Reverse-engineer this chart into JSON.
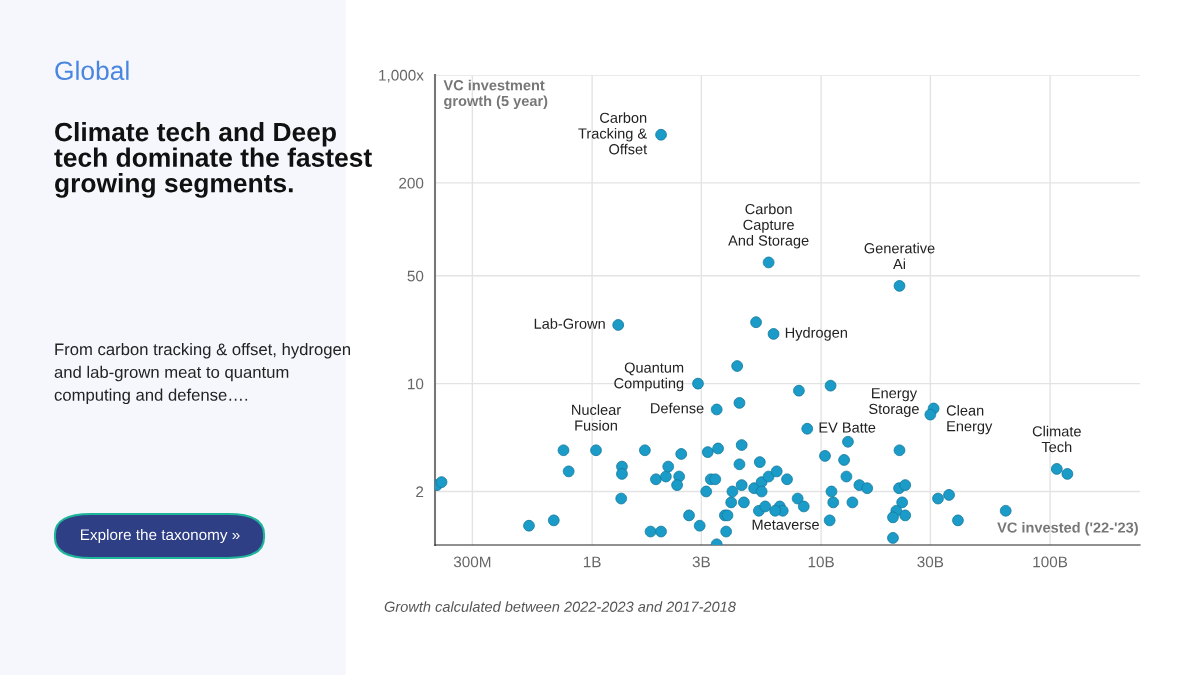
{
  "chart_data": {
    "type": "scatter",
    "subtitle": "Global",
    "title": "Climate tech and Deep tech dominate the fastest growing segments.",
    "xlabel": "VC invested ('22-'23)",
    "ylabel": "VC investment\ngrowth (5 year)",
    "log": "xy",
    "grid": true,
    "marker": "circle",
    "xlim": [
      206000000,
      247000000000
    ],
    "xticks": [
      {
        "value": 300000000,
        "label": "300M"
      },
      {
        "value": 1000000000,
        "label": "1B"
      },
      {
        "value": 3000000000,
        "label": "3B"
      },
      {
        "value": 10000000000,
        "label": "10B"
      },
      {
        "value": 30000000000,
        "label": "30B"
      },
      {
        "value": 100000000000,
        "label": "100B"
      }
    ],
    "ylim": [
      0.9,
      1000
    ],
    "yticks": [
      2,
      10,
      50,
      200,
      {
        "value": 1000,
        "label": "1,000x"
      }
    ],
    "series": [
      {
        "color": "#1a9bc8",
        "x": [
          2000000000.0,
          5900000000.0,
          22000000000.0,
          1300000000.0,
          6200000000.0,
          5200000000.0,
          4300000000.0,
          2900000000.0,
          3500000000.0,
          4400000000.0,
          8000000000.0,
          11000000000.0,
          8700000000.0,
          22000000000.0,
          31000000000.0,
          30000000000.0,
          107000000000.0,
          119000000000.0,
          210000000.0,
          220000000.0,
          530000000.0,
          680000000.0,
          750000000.0,
          790000000.0,
          1040000000.0,
          1350000000.0,
          1350000000.0,
          1340000000.0,
          1700000000.0,
          1800000000.0,
          2000000000.0,
          1900000000.0,
          2100000000.0,
          2150000000.0,
          2450000000.0,
          2400000000.0,
          2350000000.0,
          2650000000.0,
          2950000000.0,
          3200000000.0,
          3550000000.0,
          3150000000.0,
          3300000000.0,
          3450000000.0,
          3500000000.0,
          3800000000.0,
          3900000000.0,
          3850000000.0,
          4050000000.0,
          4100000000.0,
          4400000000.0,
          4500000000.0,
          4500000000.0,
          4600000000.0,
          5100000000.0,
          5400000000.0,
          5500000000.0,
          5500000000.0,
          5350000000.0,
          5700000000.0,
          5900000000.0,
          6400000000.0,
          7100000000.0,
          6600000000.0,
          6800000000.0,
          6300000000.0,
          7900000000.0,
          8400000000.0,
          10900000000.0,
          13100000000.0,
          10400000000.0,
          12600000000.0,
          12900000000.0,
          14700000000.0,
          15900000000.0,
          11100000000.0,
          11300000000.0,
          13700000000.0,
          21900000000.0,
          23300000000.0,
          22600000000.0,
          21300000000.0,
          20600000000.0,
          23300000000.0,
          20600000000.0,
          32400000000.0,
          36200000000.0,
          39600000000.0,
          64000000000.0
        ],
        "values": [
          410,
          61,
          43,
          24,
          21,
          25,
          13,
          10,
          6.8,
          7.5,
          9.0,
          9.7,
          5.1,
          3.7,
          6.9,
          6.3,
          2.8,
          2.6,
          2.2,
          2.3,
          1.2,
          1.3,
          3.7,
          2.7,
          3.7,
          2.9,
          2.6,
          1.8,
          3.7,
          1.1,
          1.1,
          2.4,
          2.5,
          2.9,
          3.5,
          2.5,
          2.2,
          1.4,
          1.2,
          3.6,
          3.8,
          2.0,
          2.4,
          2.4,
          0.91,
          1.4,
          1.4,
          1.1,
          1.7,
          2.0,
          3.0,
          4.0,
          2.2,
          1.7,
          2.1,
          3.1,
          2.3,
          2.0,
          1.5,
          1.6,
          2.5,
          2.7,
          2.4,
          1.6,
          1.5,
          1.5,
          1.8,
          1.6,
          1.3,
          4.2,
          3.4,
          3.2,
          2.5,
          2.2,
          2.1,
          2.0,
          1.7,
          1.7,
          2.1,
          2.2,
          1.7,
          1.5,
          1.36,
          1.4,
          1.0,
          1.8,
          1.9,
          1.3,
          1.5
        ]
      }
    ],
    "annotations": [
      {
        "text": "Carbon\nTracking &\nOffset",
        "x": 2000000000.0,
        "y": 410
      },
      {
        "text": "Carbon\nCapture\nAnd Storage",
        "x": 5900000000.0,
        "y": 61
      },
      {
        "text": "Generative\nAi",
        "x": 22000000000.0,
        "y": 43
      },
      {
        "text": "Lab-Grown",
        "x": 1300000000.0,
        "y": 24
      },
      {
        "text": "Hydrogen",
        "x": 6200000000.0,
        "y": 21
      },
      {
        "text": "Quantum\nComputing",
        "x": 2900000000.0,
        "y": 10
      },
      {
        "text": "Defense",
        "x": 3500000000.0,
        "y": 6.8
      },
      {
        "text": "Nuclear\nFusion",
        "x": 1040000000.0,
        "y": 3.7
      },
      {
        "text": "EV Batte",
        "x": 8700000000.0,
        "y": 5.1
      },
      {
        "text": "Energy\nStorage",
        "x": 22000000000.0,
        "y": 3.7
      },
      {
        "text": "Clean\nEnergy",
        "x": 31000000000.0,
        "y": 6.9
      },
      {
        "text": "Climate\nTech",
        "x": 107000000000.0,
        "y": 2.8
      },
      {
        "text": "Metaverse",
        "x": 6800000000.0,
        "y": 1.5
      },
      "From carbon tracking & offset, hydrogen and lab-grown meat to quantum computing and defense….",
      "Explore the taxonomy »",
      "Growth calculated between 2022-2023 and 2017-2018"
    ]
  }
}
